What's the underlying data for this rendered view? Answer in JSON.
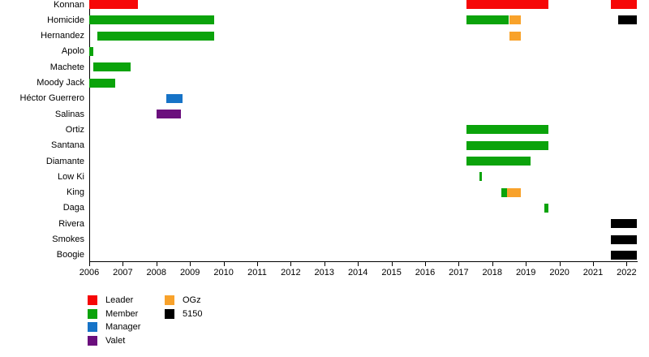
{
  "chart_data": {
    "type": "bar",
    "subtype": "timeline-gantt",
    "title": "",
    "xlabel": "",
    "ylabel": "",
    "grid": false,
    "x_axis": {
      "min": 2006,
      "max": 2022.33,
      "tick_years": [
        2006,
        2007,
        2008,
        2009,
        2010,
        2011,
        2012,
        2013,
        2014,
        2015,
        2016,
        2017,
        2018,
        2019,
        2020,
        2021,
        2022
      ]
    },
    "legend": {
      "position": "bottom-left",
      "items": [
        {
          "label": "Leader",
          "color": "#f60707",
          "column": 0,
          "row": 0
        },
        {
          "label": "Member",
          "color": "#0ba30b",
          "column": 0,
          "row": 1
        },
        {
          "label": "Manager",
          "color": "#1673c7",
          "column": 0,
          "row": 2
        },
        {
          "label": "Valet",
          "color": "#6b0f7d",
          "column": 0,
          "row": 3
        },
        {
          "label": "OGz",
          "color": "#f8a22b",
          "column": 1,
          "row": 0
        },
        {
          "label": "5150",
          "color": "#000000",
          "column": 1,
          "row": 1
        }
      ]
    },
    "rows": [
      {
        "name": "Konnan",
        "segments": [
          {
            "role": "Leader",
            "start": 2006.0,
            "end": 2007.46
          },
          {
            "role": "Leader",
            "start": 2017.22,
            "end": 2019.68
          },
          {
            "role": "Leader",
            "start": 2021.52,
            "end": 2022.31
          }
        ]
      },
      {
        "name": "Homicide",
        "segments": [
          {
            "role": "Member",
            "start": 2006.0,
            "end": 2009.73
          },
          {
            "role": "Member",
            "start": 2017.22,
            "end": 2018.5
          },
          {
            "role": "OGz",
            "start": 2018.5,
            "end": 2018.85
          },
          {
            "role": "5150",
            "start": 2021.74,
            "end": 2022.31
          }
        ]
      },
      {
        "name": "Hernandez",
        "segments": [
          {
            "role": "Member",
            "start": 2006.24,
            "end": 2009.73
          },
          {
            "role": "OGz",
            "start": 2018.5,
            "end": 2018.85
          }
        ]
      },
      {
        "name": "Apolo",
        "segments": [
          {
            "role": "Member",
            "start": 2006.0,
            "end": 2006.12
          }
        ]
      },
      {
        "name": "Machete",
        "segments": [
          {
            "role": "Member",
            "start": 2006.11,
            "end": 2007.22
          }
        ]
      },
      {
        "name": "Moody Jack",
        "segments": [
          {
            "role": "Member",
            "start": 2006.0,
            "end": 2006.77
          }
        ]
      },
      {
        "name": "Héctor Guerrero",
        "segments": [
          {
            "role": "Manager",
            "start": 2008.3,
            "end": 2008.77
          }
        ]
      },
      {
        "name": "Salinas",
        "segments": [
          {
            "role": "Valet",
            "start": 2008.0,
            "end": 2008.72
          }
        ]
      },
      {
        "name": "Ortiz",
        "segments": [
          {
            "role": "Member",
            "start": 2017.22,
            "end": 2019.68
          }
        ]
      },
      {
        "name": "Santana",
        "segments": [
          {
            "role": "Member",
            "start": 2017.22,
            "end": 2019.68
          }
        ]
      },
      {
        "name": "Diamante",
        "segments": [
          {
            "role": "Member",
            "start": 2017.22,
            "end": 2019.13
          }
        ]
      },
      {
        "name": "Low Ki",
        "segments": [
          {
            "role": "Member",
            "start": 2017.61,
            "end": 2017.68
          }
        ]
      },
      {
        "name": "King",
        "segments": [
          {
            "role": "Member",
            "start": 2018.27,
            "end": 2018.44
          },
          {
            "role": "OGz",
            "start": 2018.44,
            "end": 2018.85
          }
        ]
      },
      {
        "name": "Daga",
        "segments": [
          {
            "role": "Member",
            "start": 2019.55,
            "end": 2019.67
          }
        ]
      },
      {
        "name": "Rivera",
        "segments": [
          {
            "role": "5150",
            "start": 2021.52,
            "end": 2022.31
          }
        ]
      },
      {
        "name": "Smokes",
        "segments": [
          {
            "role": "5150",
            "start": 2021.52,
            "end": 2022.31
          }
        ]
      },
      {
        "name": "Boogie",
        "segments": [
          {
            "role": "5150",
            "start": 2021.52,
            "end": 2022.31
          }
        ]
      }
    ]
  }
}
